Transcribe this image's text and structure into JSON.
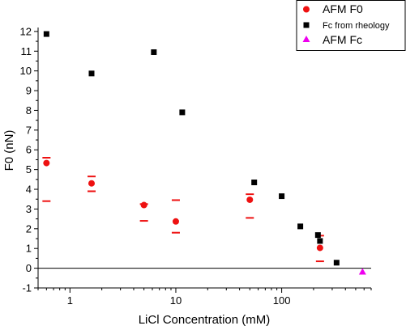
{
  "chart_data": {
    "type": "scatter",
    "xlabel": "LiCl Concentration (mM)",
    "ylabel": "F0 (nN)",
    "xscale": "log",
    "xlim": [
      0.5,
      700
    ],
    "ylim": [
      -1,
      12.2
    ],
    "x_tick_values": [
      1,
      10,
      100
    ],
    "x_tick_labels": [
      "1",
      "10",
      "100"
    ],
    "y_tick_values": [
      -1,
      0,
      1,
      2,
      3,
      4,
      5,
      6,
      7,
      8,
      9,
      10,
      11,
      12
    ],
    "y_tick_labels": [
      "-1",
      "0",
      "1",
      "2",
      "3",
      "4",
      "5",
      "6",
      "7",
      "8",
      "9",
      "10",
      "11",
      "12"
    ],
    "zero_line": true,
    "grid": false,
    "legend_position": "top-right",
    "series": [
      {
        "name": "AFM F0",
        "marker": "circle",
        "color": "#ee1111",
        "points": [
          {
            "x": 0.6,
            "y": 5.33,
            "y_low": 3.4,
            "y_high": 5.6
          },
          {
            "x": 1.6,
            "y": 4.3,
            "y_low": 3.9,
            "y_high": 4.65
          },
          {
            "x": 5.0,
            "y": 3.2,
            "y_low": 2.4,
            "y_high": 3.25
          },
          {
            "x": 10.0,
            "y": 2.37,
            "y_low": 1.8,
            "y_high": 3.45
          },
          {
            "x": 50.0,
            "y": 3.47,
            "y_low": 2.55,
            "y_high": 3.75
          },
          {
            "x": 230.0,
            "y": 1.03,
            "y_low": 0.35,
            "y_high": 1.65
          }
        ]
      },
      {
        "name": "Fc from rheology",
        "marker": "square",
        "color": "#000000",
        "points": [
          {
            "x": 0.6,
            "y": 11.87
          },
          {
            "x": 1.6,
            "y": 9.87
          },
          {
            "x": 6.2,
            "y": 10.95
          },
          {
            "x": 11.5,
            "y": 7.9
          },
          {
            "x": 55.0,
            "y": 4.35
          },
          {
            "x": 100.0,
            "y": 3.65
          },
          {
            "x": 150.0,
            "y": 2.12
          },
          {
            "x": 220.0,
            "y": 1.68
          },
          {
            "x": 230.0,
            "y": 1.38
          },
          {
            "x": 330.0,
            "y": 0.28
          }
        ]
      },
      {
        "name": "AFM Fc",
        "marker": "triangle",
        "color": "#ee00ee",
        "points": [
          {
            "x": 580.0,
            "y": -0.18
          }
        ]
      }
    ]
  }
}
